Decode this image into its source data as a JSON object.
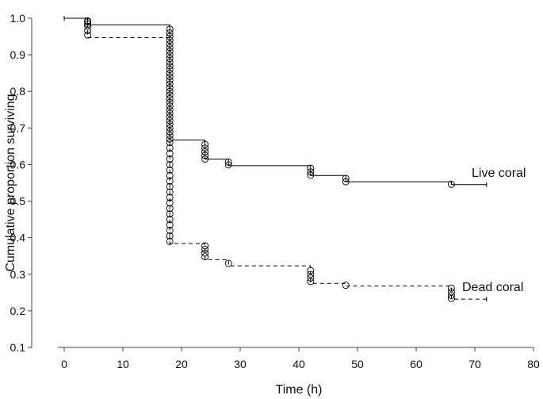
{
  "chart_data": {
    "type": "line",
    "subtype": "kaplan-meier-survival",
    "xlabel": "Time (h)",
    "ylabel": "Cumulative proportion surviving",
    "xlim": [
      0,
      80
    ],
    "ylim": [
      0.1,
      1.0
    ],
    "x_ticks": [
      "0",
      "10",
      "20",
      "30",
      "40",
      "50",
      "60",
      "70",
      "80"
    ],
    "y_ticks": [
      "0.1",
      "0.2",
      "0.3",
      "0.4",
      "0.5",
      "0.6",
      "0.7",
      "0.8",
      "0.9",
      "1.0"
    ],
    "grid": false,
    "series": [
      {
        "name": "Live coral",
        "line_style": "solid",
        "color": "#000000",
        "steps": [
          [
            0,
            1.0
          ],
          [
            4,
            0.982
          ],
          [
            18,
            0.667
          ],
          [
            24,
            0.615
          ],
          [
            28,
            0.597
          ],
          [
            42,
            0.57
          ],
          [
            48,
            0.553
          ],
          [
            66,
            0.545
          ],
          [
            72,
            0.545
          ]
        ],
        "censored": [
          [
            4,
            0.993
          ],
          [
            4,
            0.984
          ],
          [
            18,
            0.97
          ],
          [
            18,
            0.96
          ],
          [
            18,
            0.95
          ],
          [
            18,
            0.94
          ],
          [
            18,
            0.93
          ],
          [
            18,
            0.92
          ],
          [
            18,
            0.91
          ],
          [
            18,
            0.9
          ],
          [
            18,
            0.89
          ],
          [
            18,
            0.88
          ],
          [
            18,
            0.87
          ],
          [
            18,
            0.86
          ],
          [
            18,
            0.85
          ],
          [
            18,
            0.84
          ],
          [
            18,
            0.83
          ],
          [
            18,
            0.82
          ],
          [
            18,
            0.81
          ],
          [
            18,
            0.8
          ],
          [
            18,
            0.79
          ],
          [
            18,
            0.78
          ],
          [
            18,
            0.77
          ],
          [
            18,
            0.76
          ],
          [
            18,
            0.75
          ],
          [
            18,
            0.74
          ],
          [
            18,
            0.73
          ],
          [
            18,
            0.72
          ],
          [
            18,
            0.71
          ],
          [
            18,
            0.7
          ],
          [
            18,
            0.69
          ],
          [
            18,
            0.68
          ],
          [
            18,
            0.67
          ],
          [
            24,
            0.655
          ],
          [
            24,
            0.645
          ],
          [
            24,
            0.635
          ],
          [
            24,
            0.625
          ],
          [
            24,
            0.615
          ],
          [
            28,
            0.607
          ],
          [
            28,
            0.599
          ],
          [
            42,
            0.59
          ],
          [
            42,
            0.58
          ],
          [
            42,
            0.571
          ],
          [
            48,
            0.562
          ],
          [
            48,
            0.553
          ],
          [
            66,
            0.546
          ]
        ],
        "label": "Live coral"
      },
      {
        "name": "Dead coral",
        "line_style": "dashed",
        "color": "#000000",
        "steps": [
          [
            0,
            1.0
          ],
          [
            4,
            0.947
          ],
          [
            18,
            0.384
          ],
          [
            24,
            0.34
          ],
          [
            28,
            0.323
          ],
          [
            42,
            0.275
          ],
          [
            48,
            0.268
          ],
          [
            66,
            0.232
          ],
          [
            72,
            0.232
          ]
        ],
        "censored": [
          [
            4,
            0.99
          ],
          [
            4,
            0.978
          ],
          [
            4,
            0.966
          ],
          [
            4,
            0.954
          ],
          [
            18,
            0.66
          ],
          [
            18,
            0.645
          ],
          [
            18,
            0.63
          ],
          [
            18,
            0.615
          ],
          [
            18,
            0.6
          ],
          [
            18,
            0.585
          ],
          [
            18,
            0.57
          ],
          [
            18,
            0.555
          ],
          [
            18,
            0.54
          ],
          [
            18,
            0.525
          ],
          [
            18,
            0.51
          ],
          [
            18,
            0.495
          ],
          [
            18,
            0.48
          ],
          [
            18,
            0.465
          ],
          [
            18,
            0.45
          ],
          [
            18,
            0.435
          ],
          [
            18,
            0.42
          ],
          [
            18,
            0.405
          ],
          [
            18,
            0.39
          ],
          [
            24,
            0.378
          ],
          [
            24,
            0.368
          ],
          [
            24,
            0.358
          ],
          [
            24,
            0.348
          ],
          [
            28,
            0.33
          ],
          [
            42,
            0.31
          ],
          [
            42,
            0.3
          ],
          [
            42,
            0.29
          ],
          [
            42,
            0.28
          ],
          [
            48,
            0.27
          ],
          [
            66,
            0.262
          ],
          [
            66,
            0.252
          ],
          [
            66,
            0.242
          ],
          [
            66,
            0.234
          ]
        ],
        "label": "Dead coral"
      }
    ],
    "annotations": [
      "Live coral",
      "Dead coral"
    ]
  }
}
